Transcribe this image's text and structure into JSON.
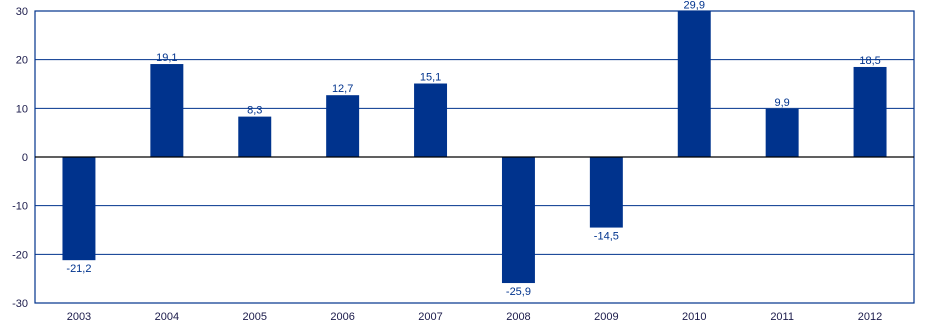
{
  "chart_data": {
    "type": "bar",
    "categories": [
      "2003",
      "2004",
      "2005",
      "2006",
      "2007",
      "2008",
      "2009",
      "2010",
      "2011",
      "2012"
    ],
    "values": [
      -21.2,
      19.1,
      8.3,
      12.7,
      15.1,
      -25.9,
      -14.5,
      29.9,
      9.9,
      18.5
    ],
    "data_labels": [
      "-21,2",
      "19,1",
      "8,3",
      "12,7",
      "15,1",
      "-25,9",
      "-14,5",
      "29,9",
      "9,9",
      "18,5"
    ],
    "y_ticks": [
      30,
      20,
      10,
      0,
      -10,
      -20,
      -30
    ],
    "ylim": [
      -30,
      30
    ],
    "grid": true,
    "legend": "none",
    "bar_color": "#00338d",
    "grid_color": "#00338d",
    "zero_line_color": "#000000"
  }
}
